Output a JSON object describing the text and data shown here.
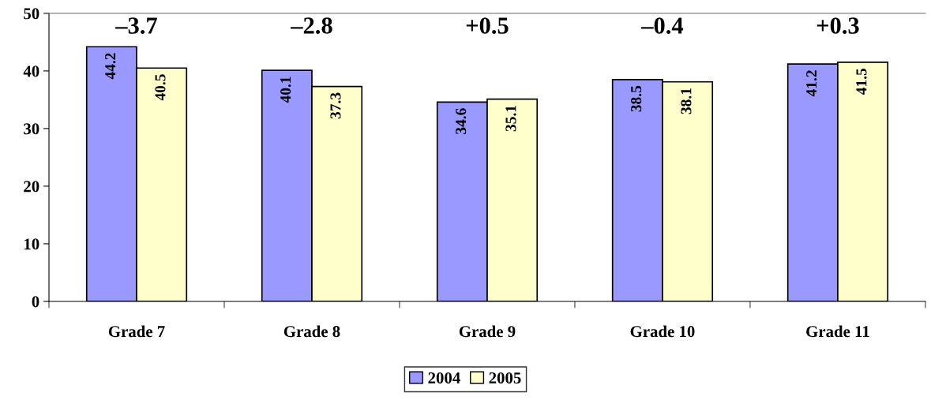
{
  "chart_data": {
    "type": "bar",
    "categories": [
      "Grade 7",
      "Grade 8",
      "Grade 9",
      "Grade 10",
      "Grade 11"
    ],
    "series": [
      {
        "name": "2004",
        "color": "#9999ff",
        "values": [
          44.2,
          40.1,
          34.6,
          38.5,
          41.2
        ]
      },
      {
        "name": "2005",
        "color": "#ffffcc",
        "values": [
          40.5,
          37.3,
          35.1,
          38.1,
          41.5
        ]
      }
    ],
    "ylim": [
      0,
      50
    ],
    "yticks": [
      0,
      10,
      20,
      30,
      40,
      50
    ],
    "data_labels": true,
    "legend": "bottom",
    "grid": false,
    "annotations": [
      "–3.7",
      "–2.8",
      "+0.5",
      "–0.4",
      "+0.3"
    ]
  }
}
